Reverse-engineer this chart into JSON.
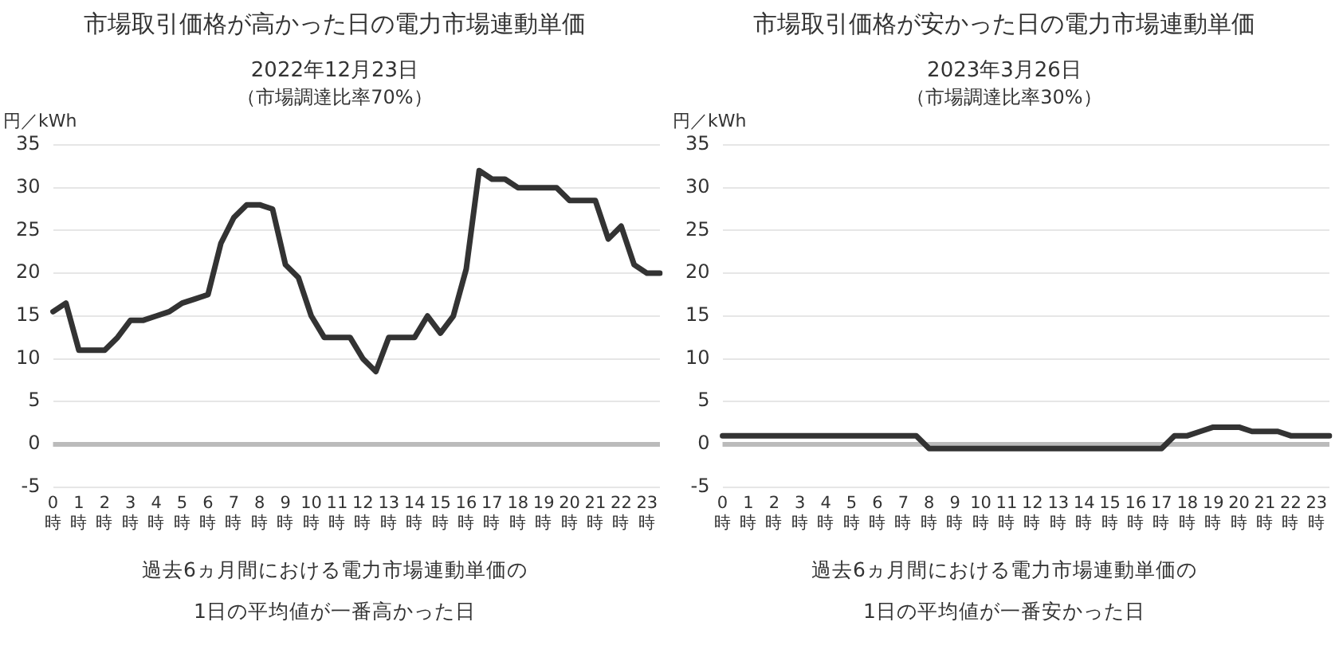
{
  "chart_data": [
    {
      "type": "line",
      "title": "市場取引価格が高かった日の電力市場連動単価",
      "subtitle": "2022年12月23日",
      "ylabel": "円／kWh",
      "categories": [
        "0時",
        null,
        "1時",
        null,
        "2時",
        null,
        "3時",
        null,
        "4時",
        null,
        "5時",
        null,
        "6時",
        null,
        "7時",
        null,
        "8時",
        null,
        "9時",
        null,
        "10時",
        null,
        "11時",
        null,
        "12時",
        null,
        "13時",
        null,
        "14時",
        null,
        "15時",
        null,
        "16時",
        null,
        "17時",
        null,
        "18時",
        null,
        "19時",
        null,
        "20時",
        null,
        "21時",
        null,
        "22時",
        null,
        "23時",
        null
      ],
      "series": [
        {
          "color": "#333333",
          "values": [
            15.5,
            16.5,
            11,
            11,
            11,
            12.5,
            14.5,
            14.5,
            15,
            15.5,
            16.5,
            17,
            17.5,
            23.5,
            26.5,
            28,
            28,
            27.5,
            21,
            19.5,
            15,
            12.5,
            12.5,
            12.5,
            10,
            8.5,
            12.5,
            12.5,
            12.5,
            15,
            13,
            15,
            20.5,
            32,
            31,
            31,
            30,
            30,
            30,
            30,
            28.5,
            28.5,
            28.5,
            24,
            25.5,
            21,
            20,
            20
          ]
        }
      ],
      "ylim": [
        -5,
        35
      ],
      "yticks": [
        -5,
        0,
        5,
        10,
        15,
        20,
        25,
        30,
        35
      ],
      "grid": "y",
      "legend": false,
      "marker": "none",
      "line_style": "solid",
      "ref_lines": [
        {
          "axis": "y",
          "value": 0,
          "color": "#bbbbbb"
        }
      ],
      "annotations": [
        "（市場調達比率70%）",
        "過去6ヵ月間における電力市場連動単価の",
        "1日の平均値が一番高かった日"
      ]
    },
    {
      "type": "line",
      "title": "市場取引価格が安かった日の電力市場連動単価",
      "subtitle": "2023年3月26日",
      "ylabel": "円／kWh",
      "categories": [
        "0時",
        null,
        "1時",
        null,
        "2時",
        null,
        "3時",
        null,
        "4時",
        null,
        "5時",
        null,
        "6時",
        null,
        "7時",
        null,
        "8時",
        null,
        "9時",
        null,
        "10時",
        null,
        "11時",
        null,
        "12時",
        null,
        "13時",
        null,
        "14時",
        null,
        "15時",
        null,
        "16時",
        null,
        "17時",
        null,
        "18時",
        null,
        "19時",
        null,
        "20時",
        null,
        "21時",
        null,
        "22時",
        null,
        "23時",
        null
      ],
      "series": [
        {
          "color": "#333333",
          "values": [
            1,
            1,
            1,
            1,
            1,
            1,
            1,
            1,
            1,
            1,
            1,
            1,
            1,
            1,
            1,
            1,
            -0.5,
            -0.5,
            -0.5,
            -0.5,
            -0.5,
            -0.5,
            -0.5,
            -0.5,
            -0.5,
            -0.5,
            -0.5,
            -0.5,
            -0.5,
            -0.5,
            -0.5,
            -0.5,
            -0.5,
            -0.5,
            -0.5,
            1,
            1,
            1.5,
            2,
            2,
            2,
            1.5,
            1.5,
            1.5,
            1,
            1,
            1,
            1
          ]
        }
      ],
      "ylim": [
        -5,
        35
      ],
      "yticks": [
        -5,
        0,
        5,
        10,
        15,
        20,
        25,
        30,
        35
      ],
      "grid": "y",
      "legend": false,
      "marker": "none",
      "line_style": "solid",
      "ref_lines": [
        {
          "axis": "y",
          "value": 0,
          "color": "#bbbbbb"
        }
      ],
      "annotations": [
        "（市場調達比率30%）",
        "過去6ヵ月間における電力市場連動単価の",
        "1日の平均値が一番安かった日"
      ]
    }
  ]
}
